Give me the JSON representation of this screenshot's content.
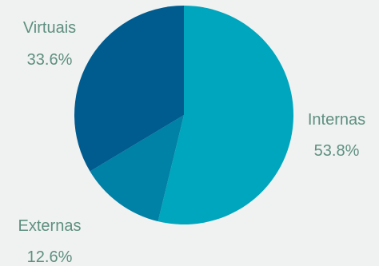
{
  "chart_data": {
    "type": "pie",
    "slices": [
      {
        "name": "Internas",
        "value": 53.8,
        "percent_label": "53.8%",
        "color": "#00a6bd"
      },
      {
        "name": "Externas",
        "value": 12.6,
        "percent_label": "12.6%",
        "color": "#0081a6"
      },
      {
        "name": "Virtuais",
        "value": 33.6,
        "percent_label": "33.6%",
        "color": "#005b8f"
      }
    ],
    "start": "top",
    "direction": "clockwise",
    "legend": "none",
    "label_color": "#5f8f80",
    "background": "#eff2f1"
  }
}
